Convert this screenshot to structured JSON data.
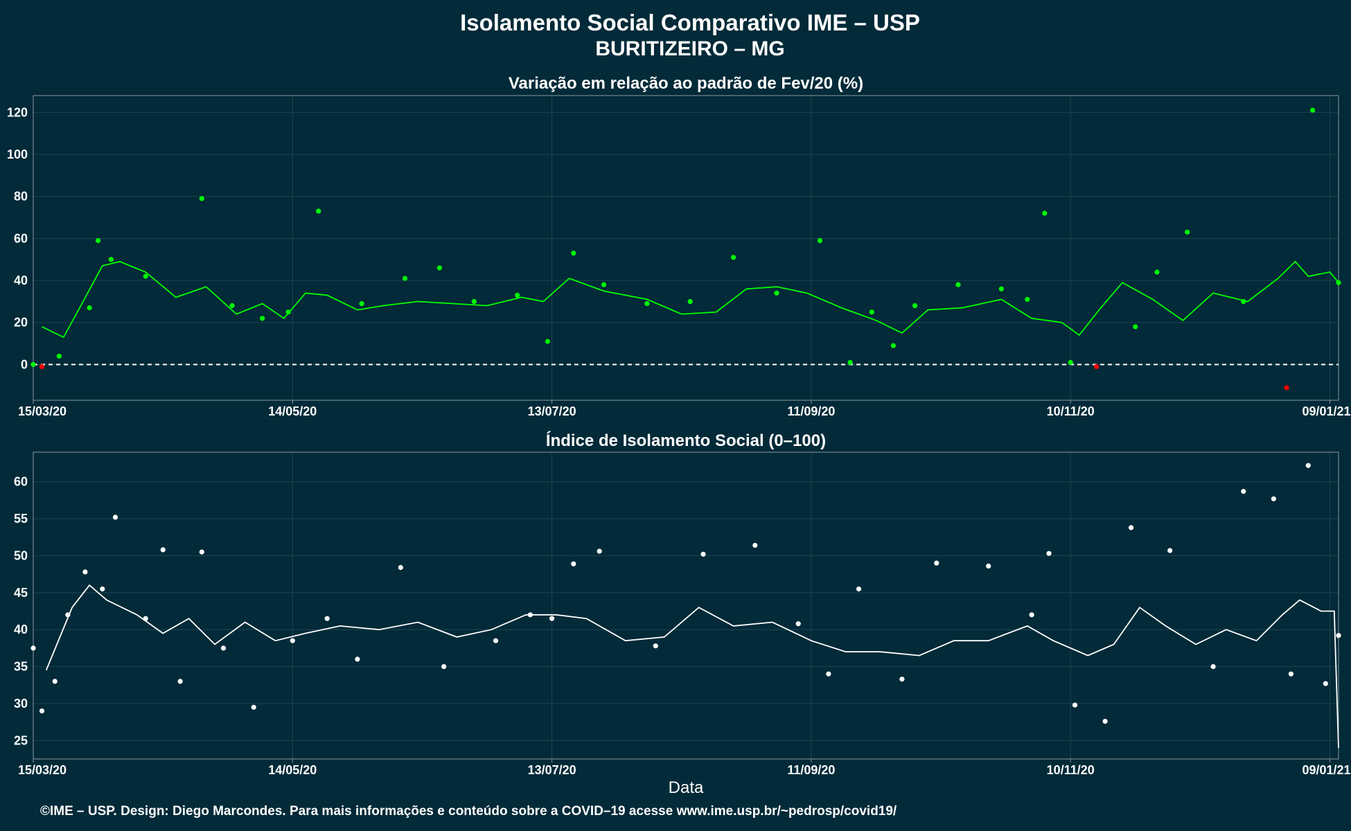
{
  "header": {
    "title_line1": "Isolamento Social Comparativo IME – USP",
    "title_line2": "BURITIZEIRO – MG"
  },
  "footer": {
    "credit": "©IME – USP. Design: Diego Marcondes. Para mais informações e conteúdo sobre a COVID–19 acesse www.ime.usp.br/~pedrosp/covid19/"
  },
  "colors": {
    "background": "#022a38",
    "positive_points": "#00ff00",
    "negative_points": "#ff0000",
    "index_points": "#ffffff",
    "panel_border": "#8a9aa0",
    "grid": "#1f4452"
  },
  "chart_data": [
    {
      "type": "scatter",
      "title": "Variação em relação ao padrão de Fev/20 (%)",
      "xlabel": "",
      "ylabel": "",
      "x_start": "15/03/20",
      "x_end": "11/01/21",
      "x_ticks": [
        "15/03/20",
        "14/05/20",
        "13/07/20",
        "11/09/20",
        "10/11/20",
        "09/01/21"
      ],
      "y_ticks": [
        0,
        20,
        40,
        60,
        80,
        100,
        120
      ],
      "ylim": [
        -17,
        128
      ],
      "reference_line": 0,
      "grid": true,
      "series": [
        {
          "kind": "points",
          "x": [
            "15/03/20",
            "17/03/20",
            "21/03/20",
            "28/03/20",
            "30/03/20",
            "02/04/20",
            "10/04/20",
            "23/04/20",
            "30/04/20",
            "07/05/20",
            "13/05/20",
            "20/05/20",
            "30/05/20",
            "09/06/20",
            "17/06/20",
            "25/06/20",
            "05/07/20",
            "12/07/20",
            "18/07/20",
            "25/07/20",
            "04/08/20",
            "14/08/20",
            "24/08/20",
            "03/09/20",
            "13/09/20",
            "20/09/20",
            "25/09/20",
            "30/09/20",
            "05/10/20",
            "15/10/20",
            "25/10/20",
            "31/10/20",
            "04/11/20",
            "10/11/20",
            "16/11/20",
            "25/11/20",
            "30/11/20",
            "07/12/20",
            "20/12/20",
            "30/12/20",
            "05/01/21",
            "11/01/21"
          ],
          "y": [
            0,
            -1,
            4,
            27,
            59,
            50,
            42,
            79,
            28,
            22,
            25,
            73,
            29,
            41,
            46,
            30,
            33,
            11,
            53,
            38,
            29,
            30,
            51,
            34,
            59,
            1,
            25,
            9,
            28,
            38,
            36,
            31,
            72,
            1,
            -1,
            18,
            44,
            63,
            30,
            -11,
            121,
            39
          ]
        },
        {
          "kind": "moving_average",
          "x": [
            "17/03/20",
            "22/03/20",
            "26/03/20",
            "31/03/20",
            "04/04/20",
            "10/04/20",
            "17/04/20",
            "24/04/20",
            "01/05/20",
            "07/05/20",
            "12/05/20",
            "17/05/20",
            "22/05/20",
            "29/05/20",
            "04/06/20",
            "12/06/20",
            "20/06/20",
            "28/06/20",
            "06/07/20",
            "11/07/20",
            "17/07/20",
            "25/07/20",
            "04/08/20",
            "12/08/20",
            "20/08/20",
            "27/08/20",
            "03/09/20",
            "10/09/20",
            "18/09/20",
            "26/09/20",
            "02/10/20",
            "08/10/20",
            "16/10/20",
            "25/10/20",
            "01/11/20",
            "08/11/20",
            "12/11/20",
            "17/11/20",
            "22/11/20",
            "29/11/20",
            "06/12/20",
            "13/12/20",
            "21/12/20",
            "28/12/20",
            "01/01/21",
            "04/01/21",
            "09/01/21",
            "11/01/21"
          ],
          "y": [
            18,
            13,
            28,
            47,
            49,
            44,
            32,
            37,
            24,
            29,
            22,
            34,
            33,
            26,
            28,
            30,
            29,
            28,
            32,
            30,
            41,
            35,
            31,
            24,
            25,
            36,
            37,
            34,
            27,
            21,
            15,
            26,
            27,
            31,
            22,
            20,
            14,
            27,
            39,
            31,
            21,
            34,
            30,
            41,
            49,
            42,
            44,
            39
          ]
        }
      ]
    },
    {
      "type": "scatter",
      "title": "Índice de Isolamento Social (0–100)",
      "xlabel": "Data",
      "ylabel": "",
      "x_start": "15/03/20",
      "x_end": "11/01/21",
      "x_ticks": [
        "15/03/20",
        "14/05/20",
        "13/07/20",
        "11/09/20",
        "10/11/20",
        "09/01/21"
      ],
      "y_ticks": [
        25,
        30,
        35,
        40,
        45,
        50,
        55,
        60
      ],
      "ylim": [
        22.5,
        64
      ],
      "grid": true,
      "series": [
        {
          "kind": "points",
          "x": [
            "15/03/20",
            "17/03/20",
            "20/03/20",
            "23/03/20",
            "27/03/20",
            "31/03/20",
            "03/04/20",
            "10/04/20",
            "14/04/20",
            "18/04/20",
            "23/04/20",
            "28/04/20",
            "05/05/20",
            "14/05/20",
            "22/05/20",
            "29/05/20",
            "08/06/20",
            "18/06/20",
            "30/06/20",
            "08/07/20",
            "13/07/20",
            "18/07/20",
            "24/07/20",
            "06/08/20",
            "17/08/20",
            "29/08/20",
            "08/09/20",
            "15/09/20",
            "22/09/20",
            "02/10/20",
            "10/10/20",
            "22/10/20",
            "01/11/20",
            "05/11/20",
            "11/11/20",
            "18/11/20",
            "24/11/20",
            "03/12/20",
            "13/12/20",
            "20/12/20",
            "27/12/20",
            "31/12/20",
            "04/01/21",
            "08/01/21",
            "11/01/21"
          ],
          "y": [
            37.5,
            29,
            33,
            42,
            47.8,
            45.5,
            55.2,
            41.5,
            50.8,
            33,
            50.5,
            37.5,
            29.5,
            38.5,
            41.5,
            36,
            48.4,
            35,
            38.5,
            42,
            41.5,
            48.9,
            50.6,
            37.8,
            50.2,
            51.4,
            40.8,
            34,
            45.5,
            33.3,
            49,
            48.6,
            42,
            50.3,
            29.8,
            27.6,
            53.8,
            50.7,
            35,
            58.7,
            57.7,
            34,
            62.2,
            32.7,
            39.2
          ]
        },
        {
          "kind": "moving_average",
          "x": [
            "18/03/20",
            "24/03/20",
            "28/03/20",
            "01/04/20",
            "08/04/20",
            "14/04/20",
            "20/04/20",
            "26/04/20",
            "03/05/20",
            "10/05/20",
            "17/05/20",
            "25/05/20",
            "03/06/20",
            "12/06/20",
            "21/06/20",
            "29/06/20",
            "07/07/20",
            "14/07/20",
            "21/07/20",
            "30/07/20",
            "08/08/20",
            "16/08/20",
            "24/08/20",
            "02/09/20",
            "11/09/20",
            "19/09/20",
            "27/09/20",
            "06/10/20",
            "14/10/20",
            "22/10/20",
            "31/10/20",
            "06/11/20",
            "14/11/20",
            "20/11/20",
            "26/11/20",
            "02/12/20",
            "09/12/20",
            "16/12/20",
            "23/12/20",
            "29/12/20",
            "02/01/21",
            "07/01/21",
            "10/01/21",
            "11/01/21"
          ],
          "y": [
            34.5,
            43,
            46,
            44,
            42,
            39.5,
            41.5,
            38,
            41,
            38.5,
            39.5,
            40.5,
            40,
            41,
            39,
            40,
            42,
            42,
            41.5,
            38.5,
            39,
            43,
            40.5,
            41,
            38.5,
            37,
            37,
            36.5,
            38.5,
            38.5,
            40.5,
            38.5,
            36.5,
            38,
            43,
            40.5,
            38,
            40,
            38.5,
            42,
            44,
            42.5,
            42.5,
            24
          ]
        }
      ]
    }
  ]
}
